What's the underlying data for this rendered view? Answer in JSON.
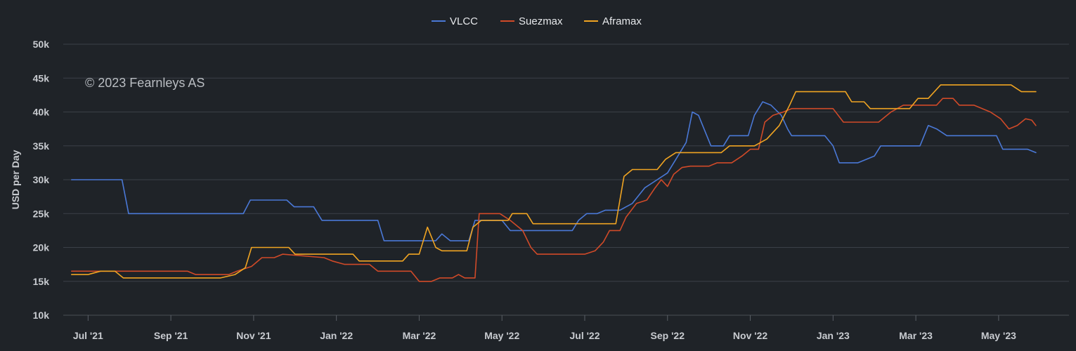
{
  "chart_data": {
    "type": "line",
    "title": "",
    "xlabel": "",
    "ylabel": "USD per Day",
    "ylim": [
      10000,
      50000
    ],
    "y_ticks": [
      10000,
      15000,
      20000,
      25000,
      30000,
      35000,
      40000,
      45000,
      50000
    ],
    "y_tick_labels": [
      "10k",
      "15k",
      "20k",
      "25k",
      "30k",
      "35k",
      "40k",
      "45k",
      "50k"
    ],
    "x_range_months": [
      0.4,
      24.7
    ],
    "x_ticks": [
      {
        "label": "Jul '21",
        "month": 1
      },
      {
        "label": "Sep '21",
        "month": 3
      },
      {
        "label": "Nov '21",
        "month": 5
      },
      {
        "label": "Jan '22",
        "month": 7
      },
      {
        "label": "Mar '22",
        "month": 9
      },
      {
        "label": "May '22",
        "month": 11
      },
      {
        "label": "Jul '22",
        "month": 13
      },
      {
        "label": "Sep '22",
        "month": 15
      },
      {
        "label": "Nov '22",
        "month": 17
      },
      {
        "label": "Jan '23",
        "month": 19
      },
      {
        "label": "Mar '23",
        "month": 21
      },
      {
        "label": "May '23",
        "month": 23
      }
    ],
    "x_unit_note": "x values are months since 2021-06-01",
    "watermark": "© 2023 Fearnleys AS",
    "legend_position": "top-center",
    "grid": true,
    "series": [
      {
        "name": "VLCC",
        "color": "#4a78d6",
        "points": [
          [
            0.6,
            30000
          ],
          [
            1.82,
            30000
          ],
          [
            1.98,
            25000
          ],
          [
            4.75,
            25000
          ],
          [
            4.92,
            27000
          ],
          [
            5.8,
            27000
          ],
          [
            5.98,
            26000
          ],
          [
            6.45,
            26000
          ],
          [
            6.65,
            24000
          ],
          [
            8.0,
            24000
          ],
          [
            8.15,
            21000
          ],
          [
            9.4,
            21000
          ],
          [
            9.55,
            22000
          ],
          [
            9.75,
            21000
          ],
          [
            10.2,
            21000
          ],
          [
            10.35,
            24000
          ],
          [
            11.0,
            24000
          ],
          [
            11.2,
            22500
          ],
          [
            12.7,
            22500
          ],
          [
            12.85,
            24000
          ],
          [
            13.05,
            25000
          ],
          [
            13.3,
            25000
          ],
          [
            13.5,
            25500
          ],
          [
            13.85,
            25500
          ],
          [
            14.15,
            26500
          ],
          [
            14.45,
            28800
          ],
          [
            14.75,
            30000
          ],
          [
            15.0,
            31000
          ],
          [
            15.2,
            33000
          ],
          [
            15.45,
            35500
          ],
          [
            15.6,
            40000
          ],
          [
            15.75,
            39500
          ],
          [
            15.95,
            36500
          ],
          [
            16.05,
            35000
          ],
          [
            16.35,
            35000
          ],
          [
            16.5,
            36500
          ],
          [
            16.95,
            36500
          ],
          [
            17.1,
            39500
          ],
          [
            17.3,
            41500
          ],
          [
            17.5,
            41000
          ],
          [
            17.75,
            39500
          ],
          [
            17.9,
            37500
          ],
          [
            18.0,
            36500
          ],
          [
            18.8,
            36500
          ],
          [
            19.0,
            35000
          ],
          [
            19.15,
            32500
          ],
          [
            19.6,
            32500
          ],
          [
            20.0,
            33500
          ],
          [
            20.15,
            35000
          ],
          [
            21.1,
            35000
          ],
          [
            21.3,
            38000
          ],
          [
            21.5,
            37500
          ],
          [
            21.75,
            36500
          ],
          [
            22.95,
            36500
          ],
          [
            23.1,
            34500
          ],
          [
            23.7,
            34500
          ],
          [
            23.9,
            34000
          ]
        ]
      },
      {
        "name": "Suezmax",
        "color": "#d04a28",
        "points": [
          [
            0.6,
            16500
          ],
          [
            3.4,
            16500
          ],
          [
            3.6,
            16000
          ],
          [
            4.4,
            16000
          ],
          [
            4.6,
            16500
          ],
          [
            4.95,
            17200
          ],
          [
            5.2,
            18500
          ],
          [
            5.5,
            18500
          ],
          [
            5.7,
            19000
          ],
          [
            6.7,
            18500
          ],
          [
            6.9,
            18000
          ],
          [
            7.2,
            17500
          ],
          [
            7.8,
            17500
          ],
          [
            8.0,
            16500
          ],
          [
            8.8,
            16500
          ],
          [
            9.0,
            15000
          ],
          [
            9.3,
            15000
          ],
          [
            9.5,
            15500
          ],
          [
            9.8,
            15500
          ],
          [
            9.95,
            16000
          ],
          [
            10.1,
            15500
          ],
          [
            10.35,
            15500
          ],
          [
            10.45,
            25000
          ],
          [
            10.95,
            25000
          ],
          [
            11.2,
            24000
          ],
          [
            11.5,
            22500
          ],
          [
            11.7,
            20000
          ],
          [
            11.85,
            19000
          ],
          [
            13.0,
            19000
          ],
          [
            13.25,
            19500
          ],
          [
            13.45,
            20800
          ],
          [
            13.6,
            22500
          ],
          [
            13.85,
            22500
          ],
          [
            14.0,
            24500
          ],
          [
            14.25,
            26500
          ],
          [
            14.5,
            27000
          ],
          [
            14.7,
            28800
          ],
          [
            14.85,
            30000
          ],
          [
            15.0,
            29000
          ],
          [
            15.15,
            30800
          ],
          [
            15.35,
            31800
          ],
          [
            15.55,
            32000
          ],
          [
            16.0,
            32000
          ],
          [
            16.2,
            32500
          ],
          [
            16.55,
            32500
          ],
          [
            16.8,
            33500
          ],
          [
            17.0,
            34500
          ],
          [
            17.2,
            34500
          ],
          [
            17.35,
            38500
          ],
          [
            17.55,
            39500
          ],
          [
            17.8,
            40000
          ],
          [
            18.0,
            40500
          ],
          [
            19.0,
            40500
          ],
          [
            19.25,
            38500
          ],
          [
            20.1,
            38500
          ],
          [
            20.4,
            40000
          ],
          [
            20.7,
            41000
          ],
          [
            21.5,
            41000
          ],
          [
            21.65,
            42000
          ],
          [
            21.9,
            42000
          ],
          [
            22.05,
            41000
          ],
          [
            22.4,
            41000
          ],
          [
            22.8,
            40000
          ],
          [
            23.05,
            39000
          ],
          [
            23.25,
            37500
          ],
          [
            23.45,
            38000
          ],
          [
            23.65,
            39000
          ],
          [
            23.8,
            38800
          ],
          [
            23.9,
            38000
          ]
        ]
      },
      {
        "name": "Aframax",
        "color": "#f0a422",
        "points": [
          [
            0.6,
            16000
          ],
          [
            1.0,
            16000
          ],
          [
            1.3,
            16500
          ],
          [
            1.65,
            16500
          ],
          [
            1.85,
            15500
          ],
          [
            4.2,
            15500
          ],
          [
            4.55,
            16000
          ],
          [
            4.8,
            17000
          ],
          [
            4.95,
            20000
          ],
          [
            5.85,
            20000
          ],
          [
            6.0,
            19000
          ],
          [
            7.4,
            19000
          ],
          [
            7.55,
            18000
          ],
          [
            8.6,
            18000
          ],
          [
            8.75,
            19000
          ],
          [
            9.0,
            19000
          ],
          [
            9.2,
            23000
          ],
          [
            9.4,
            20000
          ],
          [
            9.55,
            19500
          ],
          [
            10.15,
            19500
          ],
          [
            10.3,
            23000
          ],
          [
            10.5,
            24000
          ],
          [
            11.15,
            24000
          ],
          [
            11.25,
            25000
          ],
          [
            11.6,
            25000
          ],
          [
            11.75,
            23500
          ],
          [
            13.75,
            23500
          ],
          [
            13.95,
            30500
          ],
          [
            14.15,
            31500
          ],
          [
            14.75,
            31500
          ],
          [
            14.95,
            33000
          ],
          [
            15.2,
            34000
          ],
          [
            16.3,
            34000
          ],
          [
            16.5,
            35000
          ],
          [
            17.1,
            35000
          ],
          [
            17.4,
            36000
          ],
          [
            17.7,
            38000
          ],
          [
            17.95,
            41000
          ],
          [
            18.1,
            43000
          ],
          [
            19.3,
            43000
          ],
          [
            19.45,
            41500
          ],
          [
            19.75,
            41500
          ],
          [
            19.9,
            40500
          ],
          [
            20.85,
            40500
          ],
          [
            21.05,
            42000
          ],
          [
            21.3,
            42000
          ],
          [
            21.6,
            44000
          ],
          [
            23.3,
            44000
          ],
          [
            23.55,
            43000
          ],
          [
            23.9,
            43000
          ]
        ]
      }
    ]
  }
}
